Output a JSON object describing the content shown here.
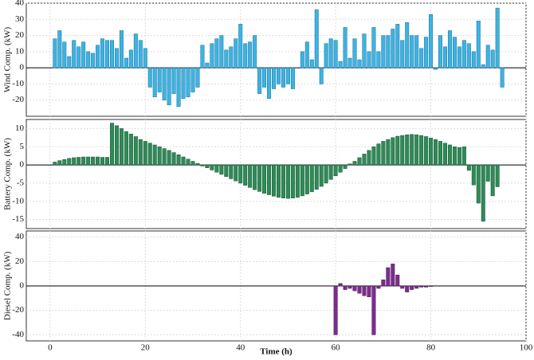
{
  "chart_data": [
    {
      "type": "bar",
      "y_label": "Wind Comp. (kW)",
      "color": "#3db3e3",
      "edge": "#1a6f96",
      "grid": true,
      "xlim": [
        -5,
        100
      ],
      "xticks": [
        0,
        20,
        40,
        60,
        80,
        100
      ],
      "ylim": [
        -30,
        40
      ],
      "yticks": [
        -20,
        -10,
        0,
        10,
        20,
        30,
        40
      ],
      "x": [
        1,
        2,
        3,
        4,
        5,
        6,
        7,
        8,
        9,
        10,
        11,
        12,
        13,
        14,
        15,
        16,
        17,
        18,
        19,
        20,
        21,
        22,
        23,
        24,
        25,
        26,
        27,
        28,
        29,
        30,
        31,
        32,
        33,
        34,
        35,
        36,
        37,
        38,
        39,
        40,
        41,
        42,
        43,
        44,
        45,
        46,
        47,
        48,
        49,
        50,
        51,
        52,
        53,
        54,
        55,
        56,
        57,
        58,
        59,
        60,
        61,
        62,
        63,
        64,
        65,
        66,
        67,
        68,
        69,
        70,
        71,
        72,
        73,
        74,
        75,
        76,
        77,
        78,
        79,
        80,
        81,
        82,
        83,
        84,
        85,
        86,
        87,
        88,
        89,
        90,
        91,
        92,
        93,
        94,
        95
      ],
      "values": [
        18,
        23,
        16,
        7,
        17,
        13,
        16,
        10,
        9,
        14,
        18,
        17,
        17,
        12,
        23,
        6,
        11,
        21,
        17,
        12,
        -12,
        -18,
        -15,
        -20,
        -23,
        -16,
        -24,
        -19,
        -18,
        -15,
        -12,
        14,
        3,
        15,
        18,
        20,
        11,
        13,
        18,
        27,
        15,
        16,
        20,
        -16,
        -12,
        -19,
        -13,
        -10,
        -12,
        -10,
        -13,
        0,
        10,
        16,
        5,
        36,
        -10,
        15,
        18,
        17,
        4,
        25,
        6,
        18,
        5,
        21,
        10,
        25,
        10,
        20,
        20,
        24,
        27,
        17,
        28,
        20,
        20,
        12,
        19,
        33,
        -1,
        20,
        13,
        23,
        19,
        13,
        17,
        15,
        10,
        29,
        2,
        14,
        11,
        37,
        -12
      ]
    },
    {
      "type": "bar",
      "y_label": "Battery Comp. (kW)",
      "color": "#2e8b57",
      "edge": "#1b5434",
      "grid": true,
      "xlim": [
        -5,
        100
      ],
      "xticks": [
        0,
        20,
        40,
        60,
        80,
        100
      ],
      "ylim": [
        -17.5,
        12.5
      ],
      "yticks": [
        -15,
        -10,
        -5,
        0,
        5,
        10
      ],
      "x": [
        1,
        2,
        3,
        4,
        5,
        6,
        7,
        8,
        9,
        10,
        11,
        12,
        13,
        14,
        15,
        16,
        17,
        18,
        19,
        20,
        21,
        22,
        23,
        24,
        25,
        26,
        27,
        28,
        29,
        30,
        31,
        32,
        33,
        34,
        35,
        36,
        37,
        38,
        39,
        40,
        41,
        42,
        43,
        44,
        45,
        46,
        47,
        48,
        49,
        50,
        51,
        52,
        53,
        54,
        55,
        56,
        57,
        58,
        59,
        60,
        61,
        62,
        63,
        64,
        65,
        66,
        67,
        68,
        69,
        70,
        71,
        72,
        73,
        74,
        75,
        76,
        77,
        78,
        79,
        80,
        81,
        82,
        83,
        84,
        85,
        86,
        87,
        88,
        89,
        90,
        91,
        92,
        93,
        94
      ],
      "values": [
        0.8,
        1.2,
        1.5,
        1.8,
        2.0,
        2.1,
        2.2,
        2.2,
        2.2,
        2.2,
        2.1,
        2.1,
        11.5,
        10.8,
        10,
        9.2,
        8.5,
        7.8,
        7,
        6.5,
        6,
        5.5,
        5,
        4.5,
        4,
        3.4,
        2.8,
        2.2,
        1.6,
        1,
        0.4,
        -0.3,
        -0.8,
        -1.4,
        -2,
        -2.6,
        -3.2,
        -3.8,
        -4.4,
        -5,
        -5.6,
        -6.2,
        -6.8,
        -7.3,
        -7.8,
        -8.2,
        -8.6,
        -8.9,
        -9.1,
        -9.2,
        -9.1,
        -8.9,
        -8.5,
        -8,
        -7.4,
        -6.7,
        -5.9,
        -5,
        -4,
        -3,
        -2,
        -1,
        0.3,
        1,
        2,
        3,
        4,
        5,
        5.8,
        6.5,
        7,
        7.5,
        7.9,
        8.1,
        8.3,
        8.4,
        8.3,
        8.1,
        7.8,
        7.4,
        7,
        6.5,
        6,
        5.5,
        5,
        4.8,
        5,
        -1.5,
        -5.5,
        -10.5,
        -15.5,
        -4.5,
        -8.5,
        -6
      ]
    },
    {
      "type": "bar",
      "y_label": "Diesel Comp. (kW)",
      "x_label": "Time (h)",
      "color": "#7b2d8e",
      "edge": "#4a1656",
      "grid": true,
      "xlim": [
        -5,
        100
      ],
      "xticks": [
        0,
        20,
        40,
        60,
        80,
        100
      ],
      "ylim": [
        -45,
        45
      ],
      "yticks": [
        -40,
        -20,
        0,
        20,
        40
      ],
      "x": [
        60,
        61,
        62,
        63,
        64,
        65,
        66,
        67,
        68,
        69,
        70,
        71,
        72,
        73,
        74,
        75,
        76,
        77,
        78,
        79,
        80
      ],
      "values": [
        -40,
        2,
        -3,
        -2,
        -4,
        -6,
        -8,
        -9,
        -40,
        -2,
        5,
        15,
        18,
        9,
        -2,
        -5,
        -3,
        -2,
        -1,
        -1,
        -0.5
      ]
    }
  ]
}
